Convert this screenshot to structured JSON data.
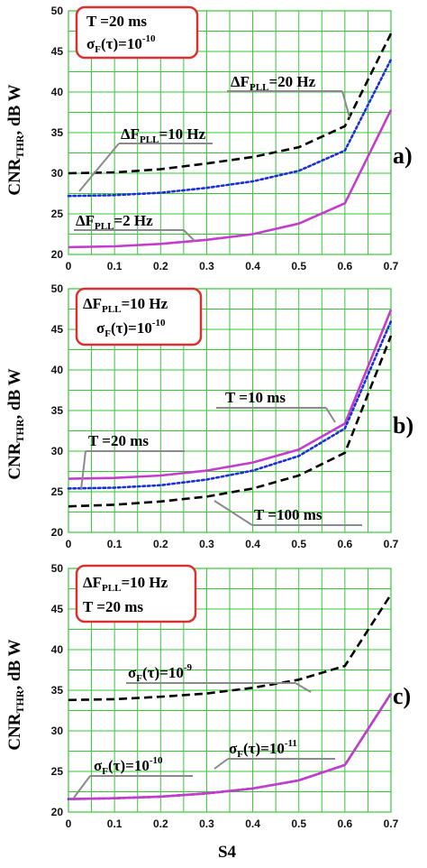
{
  "colors": {
    "grid": "#35c735",
    "black_dash": "#000000",
    "blue_dot": "#1a2fd6",
    "magenta": "#c43ccc",
    "box_border": "#d93030",
    "leader": "#8a8a8a"
  },
  "x_axis_label": "S4",
  "y_axis_label": "CNR_THR, dB W",
  "chart_data": [
    {
      "type": "line",
      "panel_label": "a)",
      "ylabel": "CNR_THR, dB W",
      "xlim": [
        0,
        0.7
      ],
      "ylim": [
        20,
        50
      ],
      "x_ticks": [
        "0",
        "0.1",
        "0.2",
        "0.3",
        "0.4",
        "0.5",
        "0.6",
        "0.7"
      ],
      "y_ticks": [
        "20",
        "25",
        "30",
        "35",
        "40",
        "45",
        "50"
      ],
      "grid": true,
      "x": [
        0,
        0.1,
        0.2,
        0.3,
        0.4,
        0.5,
        0.6,
        0.7
      ],
      "series": [
        {
          "name": "ΔF_PLL=20 Hz",
          "style": "dashed",
          "color": "#000000",
          "values": [
            30.0,
            30.1,
            30.5,
            31.2,
            32.0,
            33.2,
            35.8,
            47.2
          ]
        },
        {
          "name": "ΔF_PLL=10 Hz",
          "style": "dotted",
          "color": "#1a2fd6",
          "values": [
            27.2,
            27.3,
            27.6,
            28.2,
            29.0,
            30.3,
            32.8,
            44.0
          ]
        },
        {
          "name": "ΔF_PLL=2 Hz",
          "style": "solid",
          "color": "#c43ccc",
          "values": [
            20.9,
            21.0,
            21.3,
            21.8,
            22.5,
            23.8,
            26.3,
            37.8
          ]
        }
      ],
      "box_lines": [
        "T =20 ms",
        "σ_F(τ)=10^-10"
      ]
    },
    {
      "type": "line",
      "panel_label": "b)",
      "ylabel": "CNR_THR, dB W",
      "xlim": [
        0,
        0.7
      ],
      "ylim": [
        20,
        50
      ],
      "x_ticks": [
        "0",
        "0.1",
        "0.2",
        "0.3",
        "0.4",
        "0.5",
        "0.6",
        "0.7"
      ],
      "y_ticks": [
        "20",
        "25",
        "30",
        "35",
        "40",
        "45",
        "50"
      ],
      "grid": true,
      "x": [
        0,
        0.1,
        0.2,
        0.3,
        0.4,
        0.5,
        0.6,
        0.7
      ],
      "series": [
        {
          "name": "T =20 ms",
          "style": "solid",
          "color": "#c43ccc",
          "values": [
            26.6,
            26.7,
            27.0,
            27.6,
            28.6,
            30.2,
            33.4,
            47.4
          ]
        },
        {
          "name": "T =10 ms",
          "style": "dotted",
          "color": "#1a2fd6",
          "values": [
            25.4,
            25.5,
            25.8,
            26.5,
            27.6,
            29.4,
            32.8,
            46.0
          ]
        },
        {
          "name": "T =100 ms",
          "style": "dashed",
          "color": "#000000",
          "values": [
            23.2,
            23.4,
            23.8,
            24.4,
            25.4,
            27.0,
            29.8,
            44.2
          ]
        }
      ],
      "box_lines": [
        "ΔF_PLL=10 Hz",
        "σ_F(τ)=10^-10"
      ]
    },
    {
      "type": "line",
      "panel_label": "c)",
      "ylabel": "CNR_THR, dB W",
      "xlabel": "S4",
      "xlim": [
        0,
        0.7
      ],
      "ylim": [
        20,
        50
      ],
      "x_ticks": [
        "0",
        "0.1",
        "0.2",
        "0.3",
        "0.4",
        "0.5",
        "0.6",
        "0.7"
      ],
      "y_ticks": [
        "20",
        "25",
        "30",
        "35",
        "40",
        "45",
        "50"
      ],
      "grid": true,
      "x": [
        0,
        0.1,
        0.2,
        0.3,
        0.4,
        0.5,
        0.6,
        0.7
      ],
      "series": [
        {
          "name": "σ_F(τ)=10^-9",
          "style": "dashed",
          "color": "#000000",
          "values": [
            33.8,
            33.9,
            34.2,
            34.6,
            35.3,
            36.3,
            38.0,
            46.8
          ]
        },
        {
          "name": "σ_F(τ)=10^-11",
          "style": "dotted",
          "color": "#1a2fd6",
          "values": [
            21.6,
            21.7,
            21.9,
            22.3,
            22.9,
            23.9,
            25.8,
            34.6
          ]
        },
        {
          "name": "σ_F(τ)=10^-10",
          "style": "solid",
          "color": "#c43ccc",
          "values": [
            21.6,
            21.7,
            21.9,
            22.3,
            22.9,
            23.9,
            25.8,
            34.6
          ]
        }
      ],
      "box_lines": [
        "ΔF_PLL=10 Hz",
        "T =20 ms"
      ]
    }
  ]
}
